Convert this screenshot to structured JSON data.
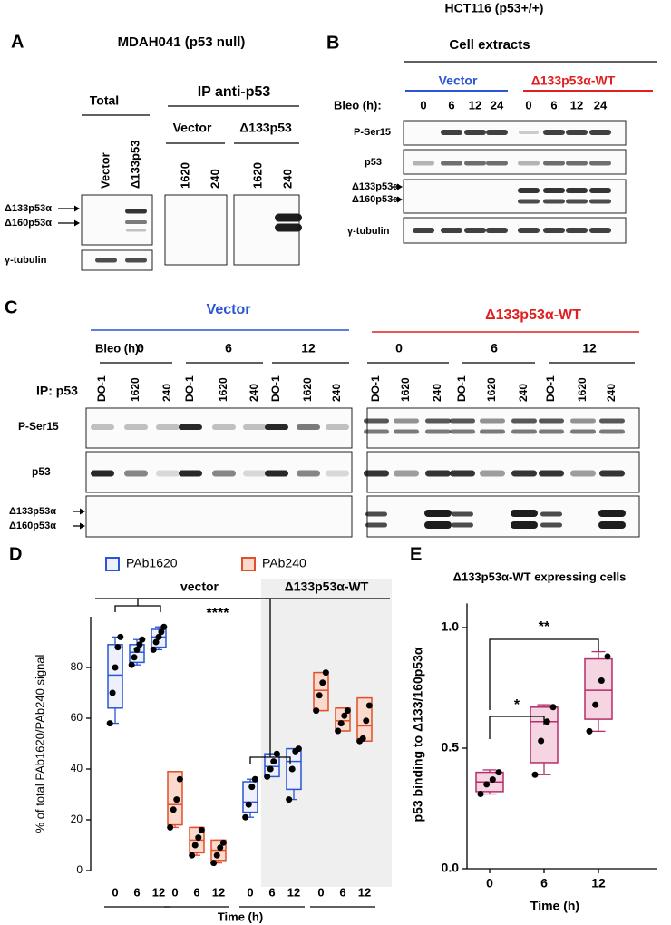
{
  "panel_a": {
    "letter": "A",
    "title": "MDAH041 (p53 null)",
    "total": "Total",
    "ip": "IP anti-p53",
    "ip_groups": [
      "Vector",
      "Δ133p53"
    ],
    "lanes_total": [
      "Vector",
      "Δ133p53"
    ],
    "lanes_ip": [
      "1620",
      "240"
    ],
    "rows": [
      "Δ133p53α",
      "Δ160p53α",
      "γ-tubulin"
    ]
  },
  "panel_b": {
    "letter": "B",
    "header": "HCT116 (p53+/+)",
    "title": "Cell extracts",
    "groups": [
      "Vector",
      "Δ133p53α-WT"
    ],
    "bleo": "Bleo (h):",
    "times": [
      "0",
      "6",
      "12",
      "24"
    ],
    "rows": [
      "P-Ser15",
      "p53",
      "Δ133p53α",
      "Δ160p53α",
      "γ-tubulin"
    ]
  },
  "panel_c": {
    "letter": "C",
    "groups": [
      "Vector",
      "Δ133p53α-WT"
    ],
    "bleo": "Bleo (h):",
    "times": [
      "0",
      "6",
      "12"
    ],
    "ip": "IP: p53",
    "lanes": [
      "DO-1",
      "1620",
      "240"
    ],
    "rows": [
      "P-Ser15",
      "p53",
      "Δ133p53α",
      "Δ160p53α"
    ]
  },
  "chart_data": [
    {
      "type": "box",
      "letter": "D",
      "groups": [
        "vector",
        "Δ133p53α-WT"
      ],
      "categories": [
        "0",
        "6",
        "12"
      ],
      "x_label": "Time (h)",
      "y_label": "% of total PAb1620/PAb240 signal",
      "ylim": [
        0,
        100
      ],
      "yticks": [
        0,
        20,
        40,
        60,
        80
      ],
      "annotations": [
        {
          "label": "****"
        }
      ],
      "series": [
        {
          "name": "PAb1620",
          "color": "#2a55d4",
          "fill": "#eef1fc",
          "boxes": [
            [
              {
                "min": 58,
                "q1": 64,
                "median": 77,
                "q3": 89,
                "max": 92,
                "points": [
                  58,
                  70,
                  80,
                  88,
                  92
                ]
              },
              {
                "min": 81,
                "q1": 82,
                "median": 86,
                "q3": 89,
                "max": 91,
                "points": [
                  81,
                  84,
                  87,
                  89,
                  91
                ]
              },
              {
                "min": 87,
                "q1": 88,
                "median": 92,
                "q3": 95,
                "max": 96,
                "points": [
                  87,
                  90,
                  92,
                  94,
                  96
                ]
              }
            ],
            [
              {
                "min": 21,
                "q1": 23,
                "median": 27,
                "q3": 35,
                "max": 36,
                "points": [
                  21,
                  26,
                  33,
                  36
                ]
              },
              {
                "min": 37,
                "q1": 37,
                "median": 41,
                "q3": 46,
                "max": 46,
                "points": [
                  37,
                  40,
                  43,
                  46
                ]
              },
              {
                "min": 28,
                "q1": 32,
                "median": 43,
                "q3": 48,
                "max": 48,
                "points": [
                  28,
                  40,
                  47,
                  48
                ]
              }
            ]
          ]
        },
        {
          "name": "PAb240",
          "color": "#e0502a",
          "fill": "#fbd9cc",
          "boxes": [
            [
              {
                "min": 17,
                "q1": 18,
                "median": 26,
                "q3": 39,
                "max": 39,
                "points": [
                  17,
                  24,
                  28,
                  36
                ]
              },
              {
                "min": 6,
                "q1": 7,
                "median": 12,
                "q3": 17,
                "max": 17,
                "points": [
                  6,
                  10,
                  13,
                  16
                ]
              },
              {
                "min": 3,
                "q1": 4,
                "median": 8,
                "q3": 12,
                "max": 12,
                "points": [
                  3,
                  6,
                  9,
                  11
                ]
              }
            ],
            [
              {
                "min": 63,
                "q1": 63,
                "median": 71,
                "q3": 78,
                "max": 78,
                "points": [
                  63,
                  69,
                  74,
                  78
                ]
              },
              {
                "min": 55,
                "q1": 55,
                "median": 59,
                "q3": 64,
                "max": 64,
                "points": [
                  55,
                  58,
                  61,
                  63
                ]
              },
              {
                "min": 51,
                "q1": 51,
                "median": 57,
                "q3": 68,
                "max": 68,
                "points": [
                  51,
                  52,
                  59,
                  65
                ]
              }
            ]
          ]
        }
      ]
    },
    {
      "type": "box",
      "letter": "E",
      "title": "Δ133p53α-WT expressing cells",
      "categories": [
        "0",
        "6",
        "12"
      ],
      "x_label": "Time (h)",
      "y_label": "p53 binding to Δ133/160p53α",
      "color": "#b22f6b",
      "fill": "#f6d5e2",
      "ylim": [
        0,
        1.1
      ],
      "yticks": [
        {
          "value": 0,
          "label": "0.0"
        },
        0.5,
        {
          "value": 1,
          "label": "1.0"
        }
      ],
      "annotations": [
        {
          "label": "*"
        },
        {
          "label": "**"
        }
      ],
      "boxes": [
        {
          "min": 0.31,
          "q1": 0.32,
          "median": 0.36,
          "q3": 0.4,
          "max": 0.41,
          "points": [
            0.31,
            0.35,
            0.37,
            0.4
          ]
        },
        {
          "min": 0.39,
          "q1": 0.44,
          "median": 0.61,
          "q3": 0.67,
          "max": 0.68,
          "points": [
            0.39,
            0.53,
            0.61,
            0.67
          ]
        },
        {
          "min": 0.57,
          "q1": 0.62,
          "median": 0.74,
          "q3": 0.87,
          "max": 0.9,
          "points": [
            0.57,
            0.68,
            0.78,
            0.88
          ]
        }
      ]
    }
  ]
}
